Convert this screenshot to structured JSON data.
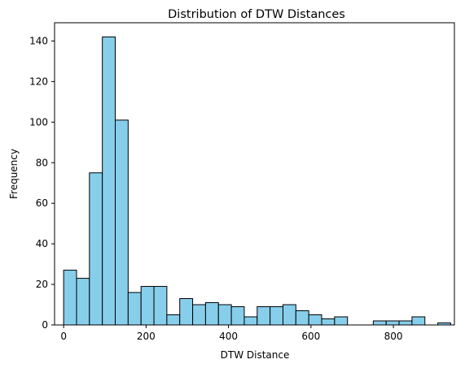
{
  "chart_data": {
    "type": "bar",
    "title": "Distribution of DTW Distances",
    "xlabel": "DTW Distance",
    "ylabel": "Frequency",
    "xlim": [
      -22,
      948
    ],
    "ylim": [
      0,
      149
    ],
    "xticks": [
      0,
      200,
      400,
      600,
      800
    ],
    "yticks": [
      0,
      20,
      40,
      60,
      80,
      100,
      120,
      140
    ],
    "bin_width": 31.3,
    "bin_start": 0,
    "values": [
      27,
      23,
      75,
      142,
      101,
      16,
      19,
      19,
      5,
      13,
      10,
      11,
      10,
      9,
      4,
      9,
      9,
      10,
      7,
      5,
      3,
      4,
      0,
      0,
      2,
      2,
      2,
      4,
      0,
      1
    ],
    "bar_color": "#87ceeb",
    "edge_color": "#000000",
    "grid": false,
    "legend": "none"
  }
}
